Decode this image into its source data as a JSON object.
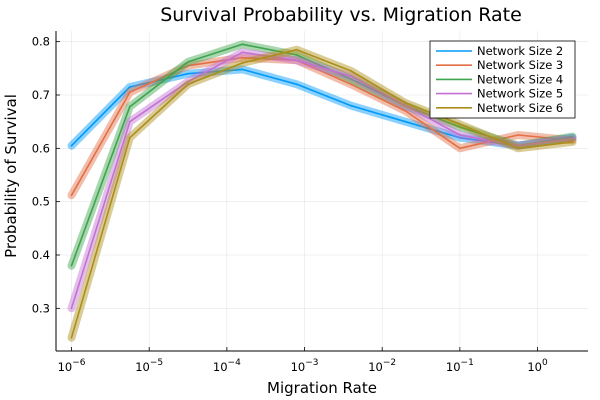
{
  "chart_data": {
    "type": "line",
    "title": "Survival Probability vs. Migration Rate",
    "xlabel": "Migration Rate",
    "ylabel": "Probability of Survival",
    "xscale": "log",
    "x_log10": [
      -6,
      -5.25,
      -4.5,
      -3.8,
      -3.1,
      -2.4,
      -1.7,
      -1.0,
      -0.25,
      0.45
    ],
    "x_tick_exponents": [
      -6,
      -5,
      -4,
      -3,
      -2,
      -1,
      0
    ],
    "y_ticks": [
      "0.3",
      "0.4",
      "0.5",
      "0.6",
      "0.7",
      "0.8"
    ],
    "ylim": [
      0.22,
      0.82
    ],
    "grid": true,
    "legend_position": "top-right",
    "series": [
      {
        "name": "Network Size 2",
        "color": "#009AFA",
        "values": [
          0.605,
          0.715,
          0.74,
          0.748,
          0.72,
          0.68,
          0.65,
          0.62,
          0.605,
          0.62
        ]
      },
      {
        "name": "Network Size 3",
        "color": "#E36F47",
        "values": [
          0.512,
          0.705,
          0.755,
          0.77,
          0.765,
          0.72,
          0.67,
          0.6,
          0.625,
          0.615
        ]
      },
      {
        "name": "Network Size 4",
        "color": "#3EA44E",
        "values": [
          0.38,
          0.678,
          0.762,
          0.795,
          0.775,
          0.73,
          0.68,
          0.64,
          0.605,
          0.622
        ]
      },
      {
        "name": "Network Size 5",
        "color": "#C371D2",
        "values": [
          0.3,
          0.65,
          0.725,
          0.78,
          0.765,
          0.735,
          0.68,
          0.625,
          0.605,
          0.618
        ]
      },
      {
        "name": "Network Size 6",
        "color": "#AC8E18",
        "values": [
          0.245,
          0.62,
          0.72,
          0.76,
          0.785,
          0.745,
          0.685,
          0.645,
          0.6,
          0.612
        ]
      }
    ]
  }
}
